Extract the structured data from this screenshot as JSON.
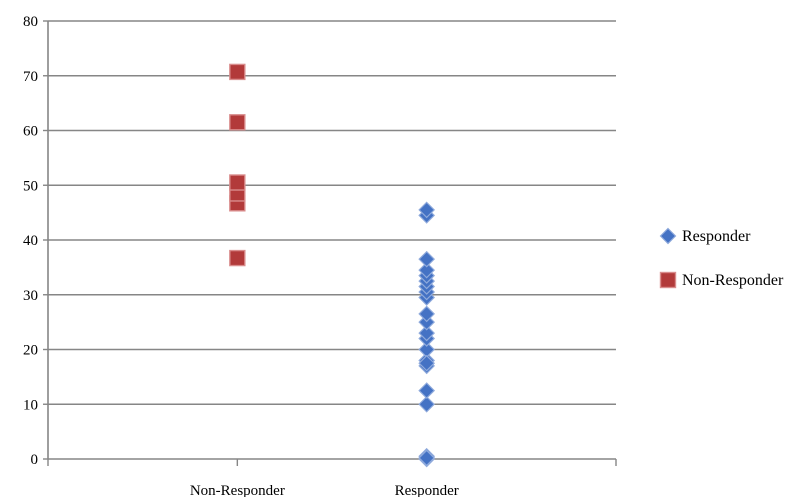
{
  "chart_data": {
    "type": "scatter",
    "categories": [
      "Non-Responder",
      "Responder"
    ],
    "xlim": [
      0,
      3
    ],
    "ylim": [
      0,
      80
    ],
    "y_ticks": [
      0,
      10,
      20,
      30,
      40,
      50,
      60,
      70,
      80
    ],
    "grid": true,
    "legend_position": "right",
    "series": [
      {
        "name": "Responder",
        "color": "#4472C4",
        "marker": "diamond",
        "x": [
          2,
          2,
          2,
          2,
          2,
          2,
          2,
          2,
          2,
          2,
          2,
          2,
          2,
          2,
          2,
          2,
          2,
          2,
          2,
          2,
          2,
          2
        ],
        "y": [
          0,
          0.5,
          10,
          12.5,
          17,
          18,
          20,
          22,
          23,
          25,
          26.5,
          29.5,
          30.5,
          31.5,
          32.5,
          33.5,
          34.5,
          36.5,
          44.5,
          45.5,
          0.2,
          17.5
        ]
      },
      {
        "name": "Non-Responder",
        "color": "#B23A3A",
        "marker": "square",
        "x": [
          1,
          1,
          1,
          1,
          1,
          1
        ],
        "y": [
          36.7,
          46.7,
          48.5,
          50.5,
          61.5,
          70.7
        ]
      }
    ]
  }
}
